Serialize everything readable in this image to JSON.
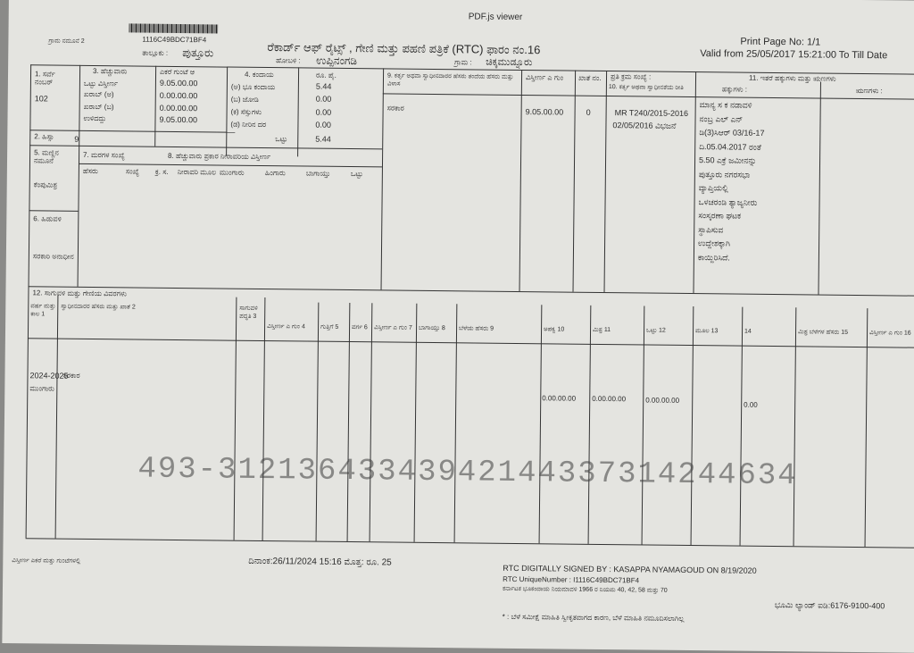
{
  "viewer_title": "PDF.js viewer",
  "barcode_id": "1116C49BDC71BF4",
  "header": {
    "village_no": "ಗ್ರಾಮ ನಮೂನೆ 2",
    "taluk_label": "ತಾಲ್ಲೂಕು :",
    "taluk": "ಪುತ್ತೂರು",
    "hobli_label": "ಹೋಬಳಿ :",
    "hobli": "ಉಪ್ಪಿನಂಗಡಿ",
    "village_label": "ಗ್ರಾಮ :",
    "village": "ಚಿಕ್ಕಮುಡ್ನೂರು",
    "title": "ರೆಕಾರ್ಡ್ ಆಫ್ ರೈಟ್ಸ್ , ಗೇಣಿ ಮತ್ತು ಪಹಣಿ ಪತ್ರಿಕೆ (RTC) ಫಾರಂ ನಂ.16",
    "print_page": "Print Page No: 1/1",
    "valid": "Valid from 25/05/2017 15:21:00 To Till Date"
  },
  "survey": {
    "label": "1. ಸರ್ವೆ ನಂಬರ್",
    "value": "102",
    "hissa_label": "2. ಹಿಸ್ಸಾ",
    "hissa": "9"
  },
  "extent": {
    "label": "3. ಹೆಚ್ಚುವಾರು",
    "header": "ಎಕರೆ ಗುಂಟೆ ಆ",
    "rows": [
      {
        "label": "ಒಟ್ಟು ವಿಸ್ತೀರ್ಣ",
        "value": "9.05.00.00"
      },
      {
        "label": "ಖರಾಬ್ (ಅ)",
        "value": "0.00.00.00"
      },
      {
        "label": "ಖರಾಬ್ (ಬ)",
        "value": "0.00.00.00"
      },
      {
        "label": "ಉಳಿದದ್ದು",
        "value": "9.05.00.00"
      }
    ]
  },
  "revenue": {
    "label": "4. ಕಂದಾಯ",
    "header": "ರೂ. ಪೈ.",
    "rows": [
      {
        "label": "(ಅ) ಭೂ ಕಂದಾಯ",
        "value": "5.44"
      },
      {
        "label": "(ಬ) ಜೋಡಿ",
        "value": "0.00"
      },
      {
        "label": "(ಕ) ಸೆಸ್ಸುಗಳು",
        "value": "0.00"
      },
      {
        "label": "(ಡ) ನೀರಿನ ದರ",
        "value": "0.00"
      }
    ],
    "total_label": "ಒಟ್ಟು",
    "total": "5.44"
  },
  "soil": {
    "label": "5. ಮಣ್ಣಿನ ನಮೂನೆ",
    "value": "ಕೆಂಪುಮಿಶ್ರ",
    "tenure_label": "6. ಹಿಡುವಳಿ",
    "tenure": "ಸರಕಾರಿ ಅನಾಧೀನ",
    "tree_label": "7. ಮರಗಳ ಸಂಖ್ಯೆ",
    "irrigation_label": "8. ಹೆಚ್ಚುವಾರು ಪ್ರಕಾರ ನೀರಾವರಿಯ ವಿಸ್ತೀರ್ಣ",
    "cols": [
      "ಹೆಸರು",
      "ಸಂಖ್ಯೆ",
      "ಕ್ರ. ಸ.",
      "ನೀರಾವರಿ ಮೂಲ",
      "ಮುಂಗಾರು",
      "ಹಿಂಗಾರು",
      "ಬಾಗಾಯ್ತು",
      "ಒಟ್ಟು"
    ]
  },
  "owner": {
    "label": "9. ಕರ್ತೃ ಅಥವಾ ಸ್ವಾಧೀನದಾರರ ಹೆಸರು ತಂದೆಯ ಹೆಸರು ಮತ್ತು ವಿಳಾಸ",
    "area_label": "ವಿಸ್ತೀರ್ಣ ಎ ಗುಂ",
    "khata_label": "ಖಾತೆ ನಂ.",
    "name": "ಸರಕಾರ",
    "area": "9.05.00.00",
    "khata": "0",
    "mode_label": "10. ಕರ್ತೃ ಅಥವಾ ಸ್ವಾಧೀನತೆಯ ರೀತಿ",
    "mode": [
      "MR T240/2015-2016",
      "02/05/2016 ವಿಭಜನೆ"
    ],
    "serial_label": "ಪ್ರತಿ ಕ್ರಮ ಸಂಖ್ಯೆ :"
  },
  "encumbrance": {
    "label": "11. ಇತರೆ ಹಕ್ಕುಗಳು ಮತ್ತು ಋಣಗಳು",
    "rights_label": "ಹಕ್ಕುಗಳು :",
    "liabilities_label": "ಋಣಗಳು :",
    "lines": [
      "ಮಾನ್ಯ ಸ ಕ ನಡಾವಳಿ",
      "ನಂಬ್ರ ಎಲ್ ಎನ್",
      "ಡಿ(3)ಸಿಆರ್ 03/16-17",
      "ದಿ.05.04.2017 ರಂತೆ",
      "5.50 ಎಕ್ರೆ ಜಮೀನನ್ನು",
      "ಪುತ್ತೂರು ನಗರಸಭಾ",
      "ವ್ಯಾಪ್ತಿಯಲ್ಲಿ",
      "ಒಳಚರಂಡಿ ತ್ಯಾಜ್ಯನೀರು",
      "ಸಂಸ್ಕರಣಾ ಘಟಕ",
      "ಸ್ಥಾಪಿಸುವ",
      "ಉದ್ದೇಶಕ್ಕಾಗಿ",
      "ಕಾಯ್ದಿರಿಸಿದೆ."
    ]
  },
  "crops": {
    "label": "12. ಸಾಗುವಳಿ ಮತ್ತು ಗೇಣಿಯ ವಿವರಗಳು",
    "cols": [
      "ವರ್ಷ ಮತ್ತು ಕಾಲ 1",
      "ಸ್ವಾಧೀನದಾರರ ಹೆಸರು ಮತ್ತು ಖಾತೆ 2",
      "ಸಾಗುವಳಿ ಪದ್ಧತಿ 3",
      "ವಿಸ್ತೀರ್ಣ ಎ ಗುಂ 4",
      "ಗುತ್ತಿಗೆ 5",
      "ವರ್ಗ 6",
      "ವಿಸ್ತೀರ್ಣ ಎ ಗುಂ 7",
      "ಬಾಗಾಯ್ತು 8",
      "ಬೆಳೆಯ ಹೆಸರು 9",
      "ಅಪಕ್ವ 10",
      "ಮಿಶ್ರ 11",
      "ಒಟ್ಟು 12",
      "ಮೂಲ 13",
      "14",
      "ಮಿಶ್ರ ಬೆಳೆಗಳ ಹೆಸರು 15",
      "ವಿಸ್ತೀರ್ಣ ಎ ಗುಂ 16"
    ],
    "row": {
      "year": "2024-2025",
      "season": "ಮುಂಗಾರು",
      "name": "ಸರಕಾರ",
      "c10": "0.00.00.00",
      "c11": "0.00.00.00",
      "c12": "0.00.00.00",
      "c14": "0.00"
    }
  },
  "watermark": "493-31213643343942144337314244634",
  "footer": {
    "left": "ವಿಸ್ತೀರ್ಣ ಎಕರೆ ಮತ್ತು ಗುಂಟೆಗಳಲ್ಲಿ",
    "date": "ದಿನಾಂಕ:26/11/2024 15:16 ಮೊತ್ತ: ರೂ. 25",
    "signed": "RTC DIGITALLY SIGNED BY : KASAPPA NYAMAGOUD ON 8/19/2020",
    "unique": "RTC UniqueNumber : I1116C49BDC71BF4",
    "rule": "ಕರ್ನಾಟಕ ಭೂಕಂದಾಯ ನಿಯಮಾವಳಿ 1966 ರ ನಿಯಮ 40, 42, 58 ಮತ್ತು 70",
    "bhoomi": "ಭೂಮಿ ಲ್ಯಾಂಡ್ ಐಡಿ:6176-9100-400",
    "note": "* : ಬೆಳೆ ಸಮೀಕ್ಷೆ ಮಾಹಿತಿ ಸ್ವೀಕೃತವಾಗದ ಕಾರಣ, ಬೆಳೆ ಮಾಹಿತಿ ನಮೂದಿಸಲಾಗಿಲ್ಲ"
  }
}
